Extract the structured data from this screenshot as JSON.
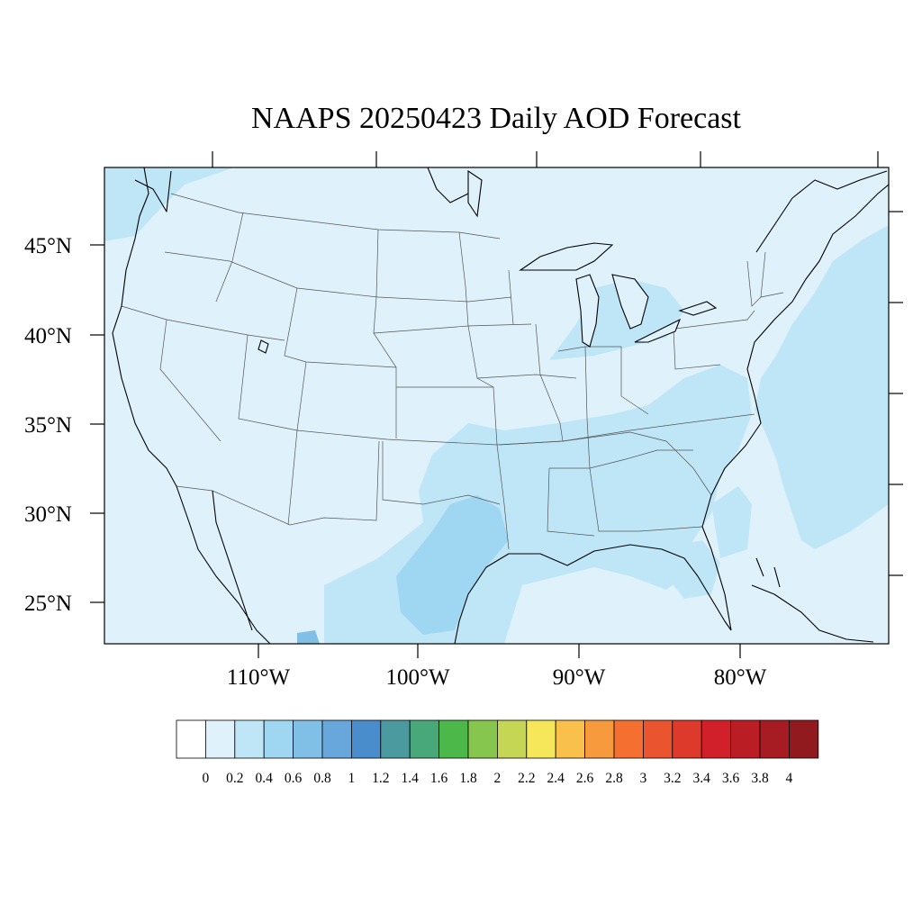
{
  "title": "NAAPS 20250423 Daily AOD Forecast",
  "map": {
    "field": "AOD",
    "lat_ticks": [
      "45°N",
      "40°N",
      "35°N",
      "30°N",
      "25°N"
    ],
    "lon_ticks": [
      "110°W",
      "100°W",
      "90°W",
      "80°W"
    ],
    "background_level": "0.2-0.4"
  },
  "colorbar": {
    "labels": [
      "0",
      "0.2",
      "0.4",
      "0.6",
      "0.8",
      "1",
      "1.2",
      "1.4",
      "1.6",
      "1.8",
      "2",
      "2.2",
      "2.4",
      "2.6",
      "2.8",
      "3",
      "3.2",
      "3.4",
      "3.6",
      "3.8",
      "4"
    ],
    "colors": [
      "#ffffff",
      "#dff1fb",
      "#bfe6f7",
      "#9fd7f3",
      "#80bfe6",
      "#67a7dc",
      "#4a8dcd",
      "#4a9a9f",
      "#48a879",
      "#4cb84a",
      "#86c54e",
      "#c5d655",
      "#f5e65a",
      "#f9c04c",
      "#f79a3e",
      "#f57030",
      "#ea5530",
      "#dd3a2c",
      "#d12029",
      "#bb1d25",
      "#a71b22",
      "#901a1e"
    ]
  }
}
